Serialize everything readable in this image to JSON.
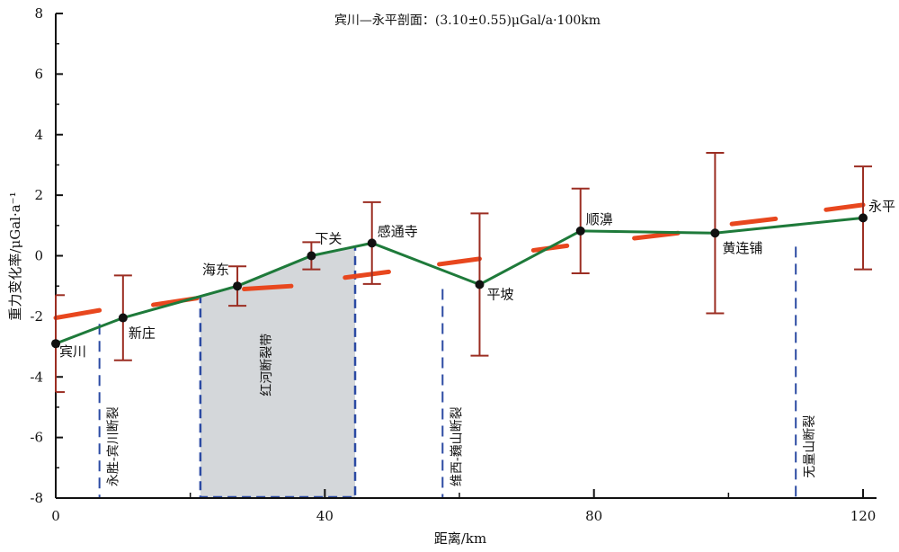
{
  "chart_data": {
    "type": "line",
    "title": "宾川—永平剖面：(3.10±0.55)μGal/a·100km",
    "xlabel": "距离/km",
    "ylabel": "重力变化率/μGal·a⁻¹",
    "xlim": [
      0,
      122
    ],
    "ylim": [
      -8,
      8
    ],
    "x_ticks": [
      0,
      40,
      80,
      120
    ],
    "x_tick_labels": [
      "0",
      "40",
      "80",
      "120"
    ],
    "y_ticks": [
      -8,
      -6,
      -4,
      -2,
      0,
      2,
      4,
      6,
      8
    ],
    "y_tick_labels": [
      "-8",
      "-6",
      "-4",
      "-2",
      "0",
      "2",
      "4",
      "6",
      "8"
    ],
    "grid": false,
    "stations": [
      {
        "name": "宾川",
        "x": 0,
        "y": -2.9,
        "err": 1.6
      },
      {
        "name": "新庄",
        "x": 10,
        "y": -2.05,
        "err": 1.4
      },
      {
        "name": "海东",
        "x": 27,
        "y": -1.0,
        "err": 0.65
      },
      {
        "name": "下关",
        "x": 38,
        "y": 0.0,
        "err": 0.45
      },
      {
        "name": "感通寺",
        "x": 47,
        "y": 0.42,
        "err": 1.35
      },
      {
        "name": "平坡",
        "x": 63,
        "y": -0.95,
        "err": 2.35
      },
      {
        "name": "顺濞",
        "x": 78,
        "y": 0.82,
        "err": 1.4
      },
      {
        "name": "黄连铺",
        "x": 98,
        "y": 0.75,
        "err": 2.65
      },
      {
        "name": "永平",
        "x": 120,
        "y": 1.25,
        "err": 1.7
      }
    ],
    "segment_slopes": [
      {
        "x": [
          0,
          6.5
        ],
        "y": [
          -2.05,
          -1.8
        ]
      },
      {
        "x": [
          14.5,
          21
        ],
        "y": [
          -1.62,
          -1.4
        ]
      },
      {
        "x": [
          28,
          35
        ],
        "y": [
          -1.1,
          -1.0
        ]
      },
      {
        "x": [
          43,
          49.5
        ],
        "y": [
          -0.72,
          -0.53
        ]
      },
      {
        "x": [
          57,
          63
        ],
        "y": [
          -0.28,
          -0.1
        ]
      },
      {
        "x": [
          71,
          76
        ],
        "y": [
          0.18,
          0.33
        ]
      },
      {
        "x": [
          86,
          92.5
        ],
        "y": [
          0.58,
          0.75
        ]
      },
      {
        "x": [
          100.5,
          107
        ],
        "y": [
          1.05,
          1.22
        ]
      },
      {
        "x": [
          114.5,
          120
        ],
        "y": [
          1.52,
          1.68
        ]
      }
    ],
    "faults": [
      {
        "name": "永胜-宾川断裂",
        "x": 6.5
      },
      {
        "name": "维西-巍山断裂",
        "x": 57.5
      },
      {
        "name": "无量山断裂",
        "x": 110
      }
    ],
    "fault_zone": {
      "name": "红河断裂带",
      "x_range": [
        21.5,
        44.5
      ]
    },
    "colors": {
      "profile_line": "#1e7a3a",
      "slope_segments": "#e8471e",
      "error_bars": "#9b2d22",
      "station_marker": "#111111",
      "fault_lines": "#2b4aa3",
      "fault_zone_fill": "#d4d7da"
    }
  }
}
